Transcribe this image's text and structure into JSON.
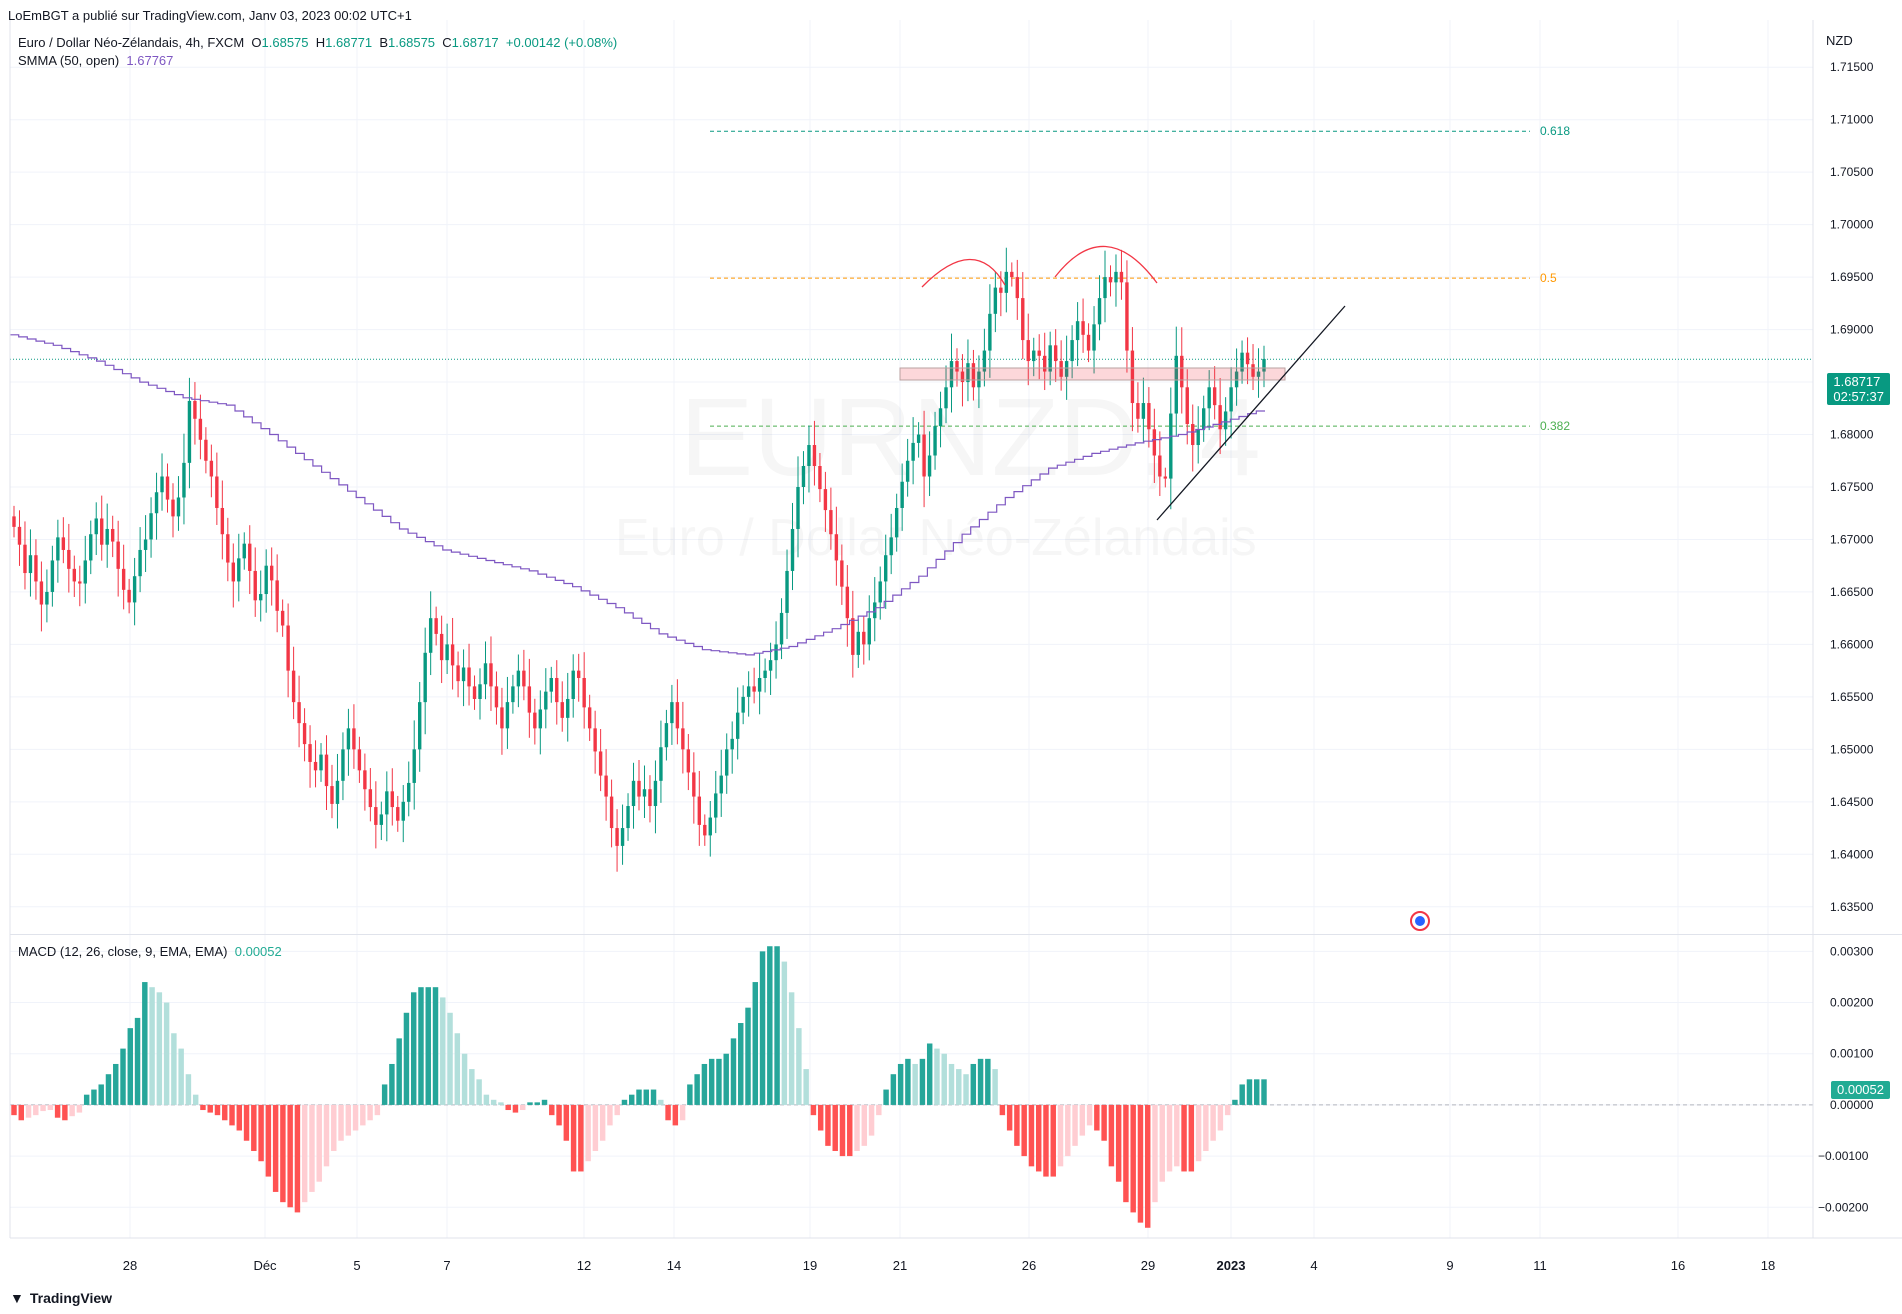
{
  "publisher": "LoEmBGT a publié sur TradingView.com, Janv 03, 2023 00:02 UTC+1",
  "symbol_title": "Euro / Dollar Néo-Zélandais, 4h, FXCM",
  "ohlc": {
    "o_label": "O",
    "o": "1.68575",
    "h_label": "H",
    "h": "1.68771",
    "b_label": "B",
    "b": "1.68575",
    "c_label": "C",
    "c": "1.68717",
    "change": "+0.00142 (+0.08%)"
  },
  "smma": {
    "label": "SMMA (50, open)",
    "value": "1.67767"
  },
  "macd": {
    "label": "MACD (12, 26, close, 9, EMA, EMA)",
    "value": "0.00052"
  },
  "currency": "NZD",
  "price_tag": {
    "price": "1.68717",
    "countdown": "02:57:37"
  },
  "macd_tag": "0.00052",
  "watermark": {
    "symbol": "EURNZD, 4",
    "name": "Euro / Dollar Néo-Zélandais"
  },
  "fib": [
    {
      "label": "0.618",
      "value": 1.7089,
      "color": "#089981"
    },
    {
      "label": "0.5",
      "value": 1.6949,
      "color": "#ff9800"
    },
    {
      "label": "0.382",
      "value": 1.6808,
      "color": "#4caf50"
    }
  ],
  "brand": "TradingView",
  "colors": {
    "up": "#089981",
    "down": "#f23645",
    "smma": "#7e57c2",
    "macd_up_strong": "#26a69a",
    "macd_up_weak": "#b2dfdb",
    "macd_dn_strong": "#ff5252",
    "macd_dn_weak": "#ffcdd2"
  },
  "chart_data": [
    {
      "type": "candlestick",
      "timeframe": "4h",
      "x_axis_labels": [
        "28",
        "Déc",
        "5",
        "7",
        "12",
        "14",
        "19",
        "21",
        "26",
        "29",
        "2023",
        "4",
        "9",
        "11",
        "16",
        "18"
      ],
      "y_axis_labels": [
        "1.71500",
        "1.71000",
        "1.70500",
        "1.70000",
        "1.69500",
        "1.69000",
        "1.68500",
        "1.68000",
        "1.67500",
        "1.67000",
        "1.66500",
        "1.66000",
        "1.65500",
        "1.65000",
        "1.64500",
        "1.64000",
        "1.63500"
      ],
      "ylim": [
        1.6325,
        1.7195
      ],
      "closes": [
        1.6712,
        1.6695,
        1.6668,
        1.6685,
        1.666,
        1.6638,
        1.665,
        1.668,
        1.6702,
        1.669,
        1.6672,
        1.666,
        1.6658,
        1.668,
        1.6705,
        1.672,
        1.6695,
        1.671,
        1.6698,
        1.6672,
        1.6652,
        1.664,
        1.6665,
        1.669,
        1.67,
        1.6725,
        1.6745,
        1.676,
        1.6738,
        1.6722,
        1.674,
        1.6773,
        1.6832,
        1.6815,
        1.6795,
        1.6775,
        1.676,
        1.673,
        1.6705,
        1.6678,
        1.666,
        1.6682,
        1.6696,
        1.667,
        1.6642,
        1.6648,
        1.6675,
        1.6661,
        1.6632,
        1.6618,
        1.6575,
        1.6545,
        1.6525,
        1.6505,
        1.6488,
        1.648,
        1.6495,
        1.6465,
        1.6448,
        1.647,
        1.65,
        1.652,
        1.65,
        1.648,
        1.6462,
        1.6445,
        1.6428,
        1.6438,
        1.646,
        1.6445,
        1.6432,
        1.645,
        1.6468,
        1.65,
        1.6545,
        1.6592,
        1.6625,
        1.661,
        1.6585,
        1.66,
        1.658,
        1.6565,
        1.6578,
        1.656,
        1.6548,
        1.6562,
        1.6582,
        1.656,
        1.654,
        1.652,
        1.6545,
        1.656,
        1.6575,
        1.656,
        1.6535,
        1.652,
        1.6538,
        1.6555,
        1.6568,
        1.6545,
        1.653,
        1.6548,
        1.6575,
        1.6568,
        1.654,
        1.652,
        1.6498,
        1.6475,
        1.6455,
        1.6425,
        1.6408,
        1.6425,
        1.6446,
        1.647,
        1.6455,
        1.6462,
        1.6446,
        1.647,
        1.6502,
        1.6525,
        1.6545,
        1.652,
        1.65,
        1.6478,
        1.6455,
        1.6428,
        1.6418,
        1.6435,
        1.6458,
        1.6475,
        1.65,
        1.651,
        1.6535,
        1.655,
        1.656,
        1.6555,
        1.6568,
        1.6575,
        1.6585,
        1.66,
        1.663,
        1.667,
        1.671,
        1.675,
        1.677,
        1.679,
        1.677,
        1.6748,
        1.6728,
        1.6705,
        1.668,
        1.6655,
        1.6625,
        1.659,
        1.6612,
        1.66,
        1.6625,
        1.664,
        1.666,
        1.6685,
        1.6702,
        1.673,
        1.6755,
        1.6775,
        1.6792,
        1.68,
        1.676,
        1.678,
        1.6808,
        1.6825,
        1.6845,
        1.687,
        1.686,
        1.685,
        1.6868,
        1.6845,
        1.686,
        1.688,
        1.6915,
        1.694,
        1.6935,
        1.6955,
        1.695,
        1.693,
        1.689,
        1.687,
        1.688,
        1.6875,
        1.686,
        1.6885,
        1.687,
        1.6855,
        1.687,
        1.689,
        1.6908,
        1.6895,
        1.688,
        1.6905,
        1.693,
        1.695,
        1.6945,
        1.6955,
        1.6945,
        1.688,
        1.683,
        1.6815,
        1.683,
        1.6805,
        1.678,
        1.676,
        1.6758,
        1.682,
        1.6875,
        1.6845,
        1.681,
        1.679,
        1.6805,
        1.6825,
        1.6845,
        1.6828,
        1.6805,
        1.6822,
        1.6845,
        1.686,
        1.6878,
        1.6867,
        1.6855,
        1.686,
        1.6872
      ],
      "current_price": 1.68717,
      "series": [
        {
          "name": "SMMA (50, open)",
          "values": [
            1.6895,
            1.6885,
            1.687,
            1.685,
            1.6835,
            1.6828,
            1.68,
            1.677,
            1.674,
            1.671,
            1.669,
            1.668,
            1.667,
            1.6655,
            1.6635,
            1.661,
            1.6595,
            1.659,
            1.6598,
            1.6615,
            1.6635,
            1.6665,
            1.6705,
            1.674,
            1.6768,
            1.6782,
            1.6792,
            1.68,
            1.6812,
            1.6825
          ]
        }
      ],
      "annotations": [
        "0.618",
        "0.5",
        "0.382"
      ]
    },
    {
      "type": "bar",
      "title": "MACD (12, 26, close, 9, EMA, EMA)",
      "y_axis_labels": [
        "0.00300",
        "0.00200",
        "0.00100",
        "0.00000",
        "−0.00100",
        "−0.00200"
      ],
      "ylim": [
        -0.0026,
        0.0033
      ],
      "values": [
        -0.0002,
        -0.0003,
        -0.00025,
        -0.0002,
        -0.00012,
        -0.0001,
        -0.00025,
        -0.0003,
        -0.00022,
        -0.00015,
        0.0002,
        0.0003,
        0.0004,
        0.0006,
        0.0008,
        0.0011,
        0.0015,
        0.0017,
        0.0024,
        0.0023,
        0.0022,
        0.002,
        0.0014,
        0.0011,
        0.0006,
        0.0002,
        -0.0001,
        -0.00015,
        -0.0002,
        -0.0003,
        -0.0004,
        -0.0005,
        -0.0007,
        -0.0009,
        -0.0011,
        -0.0014,
        -0.0017,
        -0.0019,
        -0.002,
        -0.0021,
        -0.0019,
        -0.0017,
        -0.0015,
        -0.0012,
        -0.0009,
        -0.0007,
        -0.0006,
        -0.0005,
        -0.0004,
        -0.0003,
        -0.0002,
        0.0004,
        0.0008,
        0.0013,
        0.0018,
        0.0022,
        0.0023,
        0.0023,
        0.0023,
        0.0021,
        0.0018,
        0.0014,
        0.001,
        0.0007,
        0.0005,
        0.0002,
        0.0001,
        5e-05,
        -0.0001,
        -0.00015,
        -0.0001,
        5e-05,
        5e-05,
        0.0001,
        -0.0002,
        -0.0004,
        -0.0007,
        -0.0013,
        -0.0013,
        -0.0011,
        -0.0009,
        -0.0007,
        -0.0004,
        -0.0002,
        0.0001,
        0.0002,
        0.0003,
        0.0003,
        0.0003,
        0.0001,
        -0.0003,
        -0.0004,
        -0.0003,
        0.0004,
        0.0006,
        0.0008,
        0.0009,
        0.0009,
        0.001,
        0.0013,
        0.0016,
        0.0019,
        0.0024,
        0.003,
        0.0031,
        0.0031,
        0.0028,
        0.0022,
        0.0015,
        0.0007,
        -0.0002,
        -0.0005,
        -0.0008,
        -0.0009,
        -0.001,
        -0.001,
        -0.0009,
        -0.0008,
        -0.0006,
        -0.0002,
        0.0003,
        0.0006,
        0.0008,
        0.0009,
        0.0008,
        0.0009,
        0.0012,
        0.0011,
        0.001,
        0.0008,
        0.0007,
        0.0006,
        0.0008,
        0.0009,
        0.0009,
        0.0007,
        -0.0002,
        -0.0005,
        -0.0008,
        -0.001,
        -0.0012,
        -0.0013,
        -0.0014,
        -0.0014,
        -0.0012,
        -0.001,
        -0.0008,
        -0.0006,
        -0.0004,
        -0.0005,
        -0.0007,
        -0.0012,
        -0.0015,
        -0.0019,
        -0.0021,
        -0.0023,
        -0.0024,
        -0.0019,
        -0.0015,
        -0.0013,
        -0.0012,
        -0.0013,
        -0.0013,
        -0.0011,
        -0.0009,
        -0.0007,
        -0.0005,
        -0.0002,
        0.0001,
        0.0004,
        0.0005,
        0.0005,
        0.0005
      ]
    }
  ]
}
